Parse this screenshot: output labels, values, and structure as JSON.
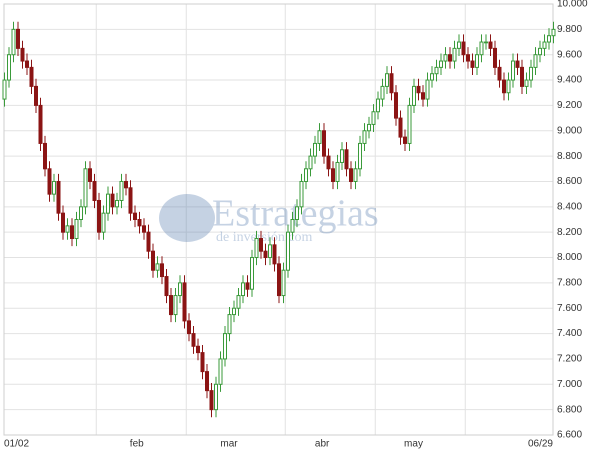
{
  "chart_data": {
    "type": "candlestick",
    "watermark": [
      "Estrategias",
      "de inversión.com"
    ],
    "xlim": [
      0,
      122
    ],
    "xticks": [
      {
        "value": 0,
        "label": "01/02"
      },
      {
        "value": 29.5,
        "label": "feb"
      },
      {
        "value": 50,
        "label": "mar"
      },
      {
        "value": 70.7,
        "label": "abr"
      },
      {
        "value": 91,
        "label": "may"
      },
      {
        "value": 122,
        "label": "06/29"
      }
    ],
    "xgrid": [
      20.5,
      40.5,
      62.5,
      82.5,
      102.5
    ],
    "ylim": [
      6600,
      10000
    ],
    "yticks": [
      {
        "value": 6600,
        "label": "6.600"
      },
      {
        "value": 6800,
        "label": "6.800"
      },
      {
        "value": 7000,
        "label": "7.000"
      },
      {
        "value": 7200,
        "label": "7.200"
      },
      {
        "value": 7400,
        "label": "7.400"
      },
      {
        "value": 7600,
        "label": "7.600"
      },
      {
        "value": 7800,
        "label": "7.800"
      },
      {
        "value": 8000,
        "label": "8.000"
      },
      {
        "value": 8200,
        "label": "8.200"
      },
      {
        "value": 8400,
        "label": "8.400"
      },
      {
        "value": 8600,
        "label": "8.600"
      },
      {
        "value": 8800,
        "label": "8.800"
      },
      {
        "value": 9000,
        "label": "9.000"
      },
      {
        "value": 9200,
        "label": "9.200"
      },
      {
        "value": 9400,
        "label": "9.400"
      },
      {
        "value": 9600,
        "label": "9.600"
      },
      {
        "value": 9800,
        "label": "9.800"
      },
      {
        "value": 10000,
        "label": "10.000"
      }
    ],
    "grid": true,
    "up_color": "#3a9a3a",
    "down_color": "#8b1414",
    "series": [
      {
        "open": [
          9250,
          9400,
          9600,
          9800,
          9650,
          9550,
          9500,
          9350,
          9200,
          8900,
          8700,
          8500,
          8600,
          8350,
          8200,
          8250,
          8150,
          8300,
          8400,
          8700,
          8600,
          8450,
          8200,
          8350,
          8500,
          8400,
          8450,
          8600,
          8550,
          8350,
          8300,
          8250,
          8200,
          8050,
          7900,
          7950,
          7850,
          7700,
          7550,
          7700,
          7800,
          7500,
          7400,
          7300,
          7250,
          7100,
          6950,
          6800,
          7000,
          7200,
          7400,
          7550,
          7600,
          7700,
          7800,
          7750,
          8000,
          8150,
          8050,
          8000,
          8100,
          7950,
          7700,
          7900,
          8200,
          8300,
          8400,
          8600,
          8700,
          8800,
          8900,
          9000,
          8800,
          8700,
          8600,
          8750,
          8850,
          8700,
          8600,
          8700,
          8900,
          9000,
          9050,
          9150,
          9250,
          9350,
          9450,
          9300,
          9100,
          8950,
          8900,
          9200,
          9350,
          9300,
          9250,
          9400,
          9450,
          9500,
          9550,
          9600,
          9550,
          9650,
          9700,
          9600,
          9550,
          9500,
          9600,
          9700,
          9700,
          9650,
          9500,
          9400,
          9300,
          9400,
          9550,
          9500,
          9350,
          9400,
          9500,
          9600,
          9650,
          9700,
          9750
        ],
        "high": [
          9460,
          9660,
          9860,
          9860,
          9710,
          9610,
          9560,
          9410,
          9260,
          8960,
          8760,
          8660,
          8660,
          8410,
          8310,
          8310,
          8360,
          8460,
          8760,
          8760,
          8660,
          8510,
          8410,
          8560,
          8560,
          8510,
          8660,
          8660,
          8610,
          8410,
          8360,
          8310,
          8260,
          8110,
          8010,
          8010,
          7910,
          7760,
          7760,
          7860,
          7860,
          7560,
          7460,
          7360,
          7310,
          7160,
          7010,
          7060,
          7260,
          7460,
          7610,
          7660,
          7760,
          7860,
          7860,
          8060,
          8210,
          8210,
          8110,
          8160,
          8160,
          8010,
          7960,
          8260,
          8360,
          8460,
          8660,
          8760,
          8860,
          8960,
          9060,
          9060,
          8860,
          8760,
          8810,
          8910,
          8910,
          8760,
          8760,
          8960,
          9060,
          9110,
          9210,
          9310,
          9410,
          9510,
          9510,
          9360,
          9160,
          9010,
          9260,
          9410,
          9410,
          9360,
          9460,
          9510,
          9560,
          9610,
          9660,
          9660,
          9710,
          9760,
          9760,
          9660,
          9610,
          9660,
          9760,
          9760,
          9760,
          9710,
          9560,
          9460,
          9460,
          9610,
          9610,
          9560,
          9460,
          9560,
          9660,
          9710,
          9760,
          9810,
          9860
        ],
        "low": [
          9190,
          9340,
          9540,
          9590,
          9490,
          9440,
          9290,
          9140,
          8840,
          8640,
          8440,
          8440,
          8290,
          8140,
          8140,
          8090,
          8090,
          8240,
          8340,
          8540,
          8390,
          8140,
          8140,
          8290,
          8340,
          8340,
          8390,
          8490,
          8290,
          8240,
          8190,
          8140,
          7990,
          7840,
          7840,
          7790,
          7640,
          7490,
          7490,
          7640,
          7440,
          7340,
          7240,
          7190,
          7040,
          6890,
          6740,
          6740,
          6940,
          7140,
          7340,
          7490,
          7540,
          7640,
          7690,
          7690,
          7940,
          7990,
          7940,
          7940,
          7890,
          7640,
          7640,
          7840,
          8140,
          8240,
          8340,
          8540,
          8640,
          8740,
          8840,
          8740,
          8640,
          8540,
          8540,
          8690,
          8640,
          8540,
          8540,
          8640,
          8840,
          8940,
          8990,
          9090,
          9190,
          9290,
          9240,
          9040,
          8890,
          8840,
          8840,
          9140,
          9240,
          9190,
          9190,
          9340,
          9390,
          9440,
          9490,
          9490,
          9490,
          9590,
          9540,
          9490,
          9440,
          9440,
          9540,
          9640,
          9590,
          9440,
          9340,
          9240,
          9240,
          9340,
          9440,
          9290,
          9290,
          9340,
          9440,
          9540,
          9590,
          9640,
          9690
        ],
        "close": [
          9400,
          9600,
          9800,
          9650,
          9550,
          9500,
          9350,
          9200,
          8900,
          8700,
          8500,
          8600,
          8350,
          8200,
          8250,
          8150,
          8300,
          8400,
          8700,
          8600,
          8450,
          8200,
          8350,
          8500,
          8400,
          8450,
          8600,
          8550,
          8350,
          8300,
          8250,
          8200,
          8050,
          7900,
          7950,
          7850,
          7700,
          7550,
          7700,
          7800,
          7500,
          7400,
          7300,
          7250,
          7100,
          6950,
          6800,
          7000,
          7200,
          7400,
          7550,
          7600,
          7700,
          7800,
          7750,
          8000,
          8150,
          8050,
          8000,
          8100,
          7950,
          7700,
          7900,
          8200,
          8300,
          8400,
          8600,
          8700,
          8800,
          8900,
          9000,
          8800,
          8700,
          8600,
          8750,
          8850,
          8700,
          8600,
          8700,
          8900,
          9000,
          9050,
          9150,
          9250,
          9350,
          9450,
          9300,
          9100,
          8950,
          8900,
          9200,
          9350,
          9300,
          9250,
          9400,
          9450,
          9500,
          9550,
          9600,
          9550,
          9650,
          9700,
          9600,
          9550,
          9500,
          9600,
          9700,
          9700,
          9650,
          9500,
          9400,
          9300,
          9400,
          9550,
          9500,
          9350,
          9400,
          9500,
          9600,
          9650,
          9700,
          9750,
          9800
        ]
      }
    ]
  }
}
